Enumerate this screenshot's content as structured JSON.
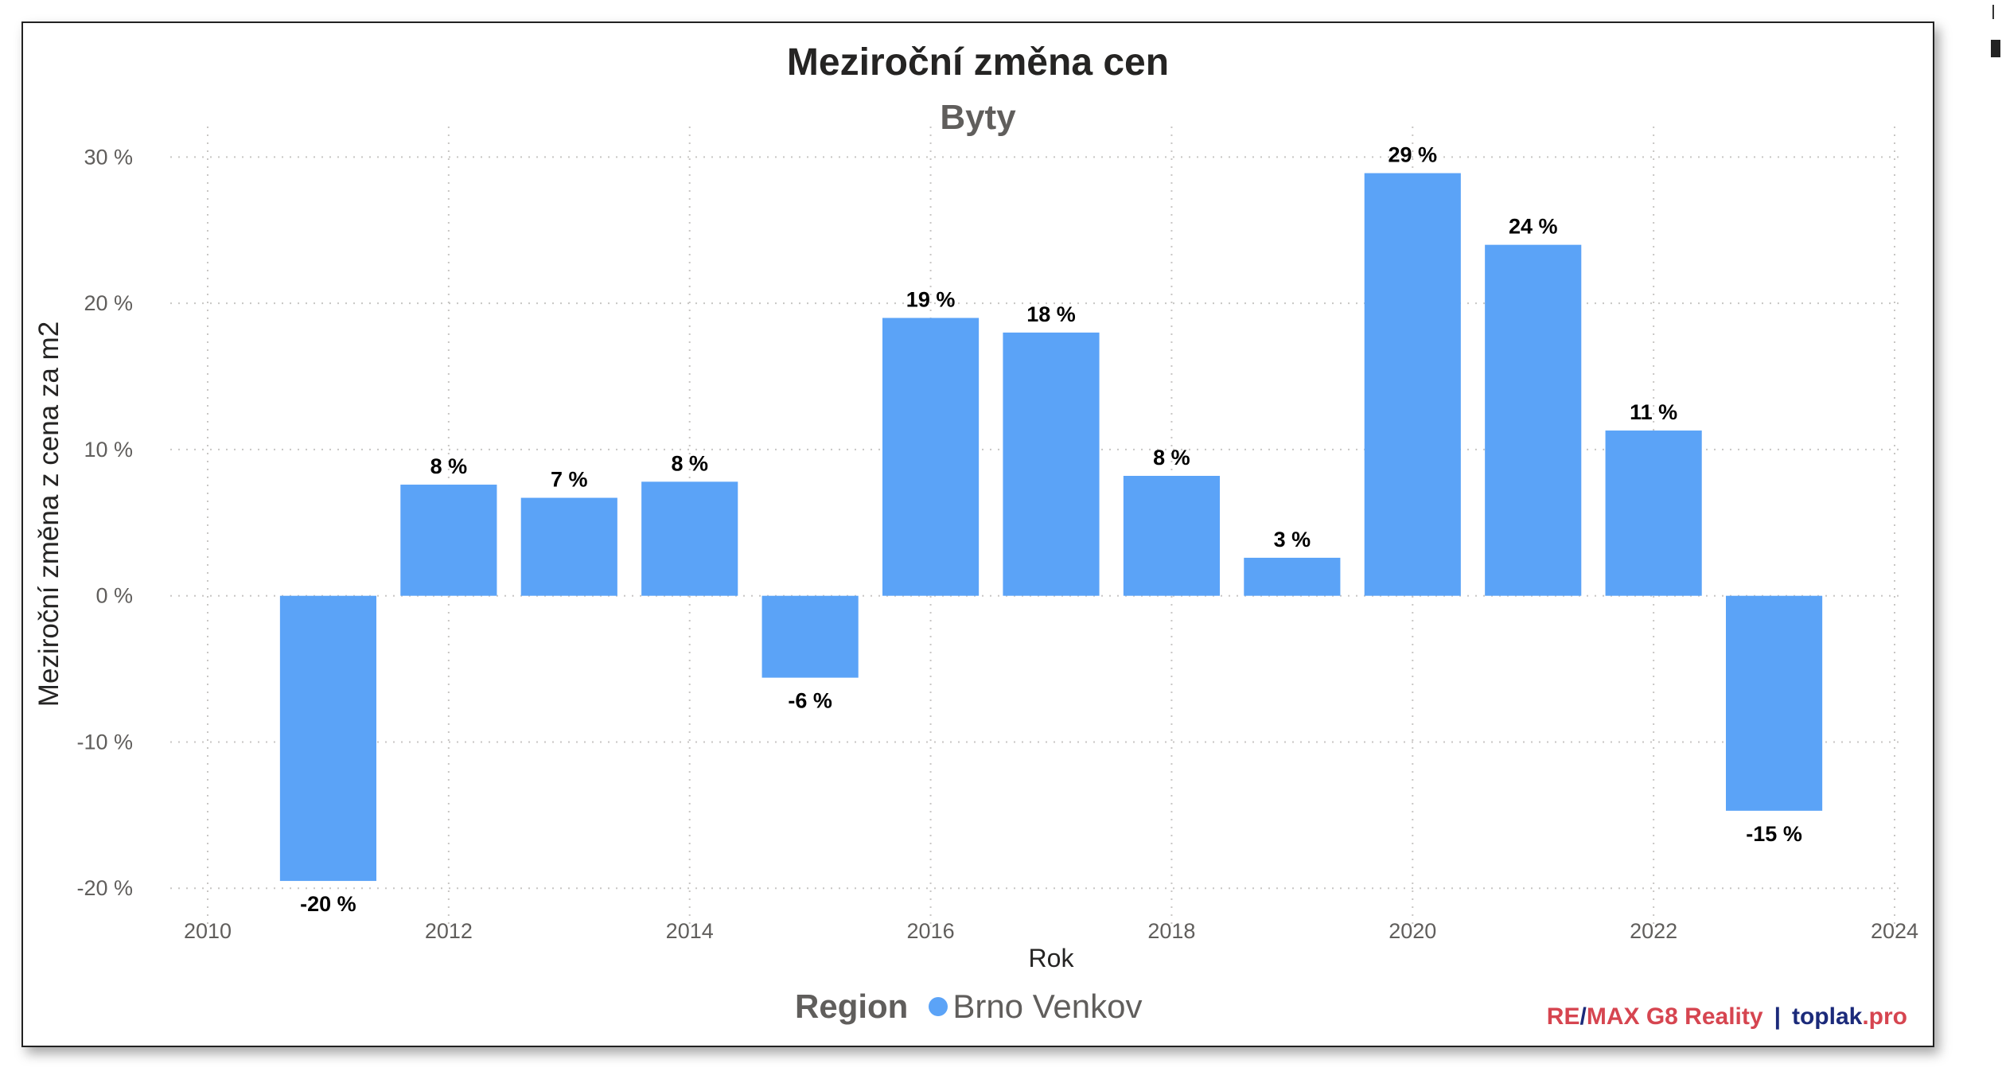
{
  "chart_data": {
    "type": "bar",
    "title": "Meziroční změna cen",
    "subtitle": "Byty",
    "xlabel": "Rok",
    "ylabel": "Meziroční změna z cena za m2",
    "x": [
      2011,
      2012,
      2013,
      2014,
      2015,
      2016,
      2017,
      2018,
      2019,
      2020,
      2021,
      2022,
      2023
    ],
    "series": [
      {
        "name": "Brno Venkov",
        "values": [
          -19.5,
          7.6,
          6.7,
          7.8,
          -5.6,
          19.0,
          18.0,
          8.2,
          2.6,
          28.9,
          24.0,
          11.3,
          -14.7
        ],
        "labels": [
          "-20 %",
          "8 %",
          "7 %",
          "8 %",
          "-6 %",
          "19 %",
          "18 %",
          "8 %",
          "3 %",
          "29 %",
          "24 %",
          "11 %",
          "-15 %"
        ]
      }
    ],
    "xlim": [
      2010,
      2024
    ],
    "ylim": [
      -22,
      31
    ],
    "xticks": [
      2010,
      2012,
      2014,
      2016,
      2018,
      2020,
      2022,
      2024
    ],
    "yticks": [
      -20,
      -10,
      0,
      10,
      20,
      30
    ],
    "ytick_labels": [
      "-20 %",
      "-10 %",
      "0 %",
      "10 %",
      "20 %",
      "30 %"
    ],
    "grid": true,
    "legend_position": "bottom-center"
  },
  "legend": {
    "title": "Region",
    "item": "Brno Venkov"
  },
  "credit": {
    "remax_a": "RE",
    "slash": "/",
    "remax_b": "MAX G8 Reality",
    "sep": "|",
    "toplak_a": "toplak",
    "toplak_b": ".pro"
  },
  "colors": {
    "bar": "#5ba3f7",
    "grid": "#c8c6c4",
    "axis_text": "#605e5c",
    "title": "#252423"
  }
}
